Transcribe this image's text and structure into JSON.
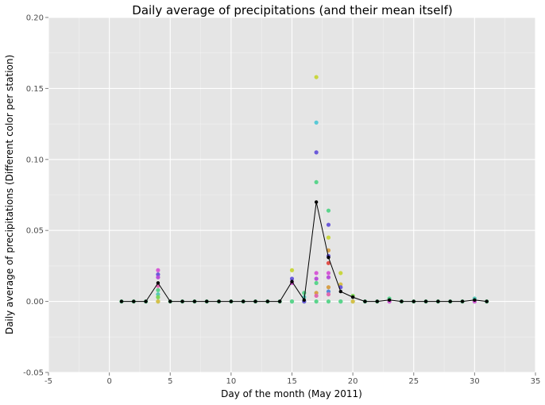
{
  "chart_data": {
    "type": "scatter",
    "title": "Daily average of precipitations (and their mean itself)",
    "xlabel": "Day of the month (May 2011)",
    "ylabel": "Daily average of precipitations (Different color per station)",
    "xlim": [
      -5,
      35
    ],
    "ylim": [
      -0.05,
      0.2
    ],
    "xticks": [
      -5,
      0,
      5,
      10,
      15,
      20,
      25,
      30,
      35
    ],
    "yticks": [
      -0.05,
      0.0,
      0.05,
      0.1,
      0.15,
      0.2
    ],
    "ytick_labels": [
      "-0.05",
      "0.00",
      "0.05",
      "0.10",
      "0.15",
      "0.20"
    ],
    "grid": true,
    "mean_series": {
      "x": [
        1,
        2,
        3,
        4,
        5,
        6,
        7,
        8,
        9,
        10,
        11,
        12,
        13,
        14,
        15,
        16,
        17,
        18,
        19,
        20,
        21,
        22,
        23,
        24,
        25,
        26,
        27,
        28,
        29,
        30,
        31
      ],
      "y": [
        0,
        0,
        0,
        0.013,
        0,
        0,
        0,
        0,
        0,
        0,
        0,
        0,
        0,
        0,
        0.014,
        0.001,
        0.07,
        0.031,
        0.007,
        0.003,
        0,
        0,
        0.001,
        0,
        0,
        0,
        0,
        0,
        0,
        0.001,
        0
      ]
    },
    "station_points": [
      {
        "x": 4,
        "y": 0.022,
        "color": "#d65ad6"
      },
      {
        "x": 4,
        "y": 0.019,
        "color": "#6b5ad9"
      },
      {
        "x": 4,
        "y": 0.017,
        "color": "#b84fd9"
      },
      {
        "x": 4,
        "y": 0.011,
        "color": "#e06ab0"
      },
      {
        "x": 4,
        "y": 0.008,
        "color": "#5bd48c"
      },
      {
        "x": 4,
        "y": 0.005,
        "color": "#58c9b8"
      },
      {
        "x": 4,
        "y": 0.003,
        "color": "#7fd65a"
      },
      {
        "x": 4,
        "y": 0.0,
        "color": "#d6c04a"
      },
      {
        "x": 15,
        "y": 0.022,
        "color": "#c9d640"
      },
      {
        "x": 15,
        "y": 0.016,
        "color": "#6b5ad9"
      },
      {
        "x": 15,
        "y": 0.013,
        "color": "#d65ad6"
      },
      {
        "x": 15,
        "y": 0.0,
        "color": "#5bd48c"
      },
      {
        "x": 16,
        "y": 0.006,
        "color": "#5bd48c"
      },
      {
        "x": 16,
        "y": 0.003,
        "color": "#58c9b8"
      },
      {
        "x": 16,
        "y": 0.0,
        "color": "#6b5ad9"
      },
      {
        "x": 17,
        "y": 0.158,
        "color": "#c9d640"
      },
      {
        "x": 17,
        "y": 0.126,
        "color": "#58c9d6"
      },
      {
        "x": 17,
        "y": 0.105,
        "color": "#6b5ad9"
      },
      {
        "x": 17,
        "y": 0.084,
        "color": "#5bd48c"
      },
      {
        "x": 17,
        "y": 0.02,
        "color": "#d65ad6"
      },
      {
        "x": 17,
        "y": 0.016,
        "color": "#b84fd9"
      },
      {
        "x": 17,
        "y": 0.013,
        "color": "#5bd48c"
      },
      {
        "x": 17,
        "y": 0.006,
        "color": "#d6a04a"
      },
      {
        "x": 17,
        "y": 0.004,
        "color": "#e06ab0"
      },
      {
        "x": 18,
        "y": 0.064,
        "color": "#5bd48c"
      },
      {
        "x": 18,
        "y": 0.054,
        "color": "#6b5ad9"
      },
      {
        "x": 18,
        "y": 0.045,
        "color": "#c9d640"
      },
      {
        "x": 18,
        "y": 0.036,
        "color": "#d6a04a"
      },
      {
        "x": 18,
        "y": 0.032,
        "color": "#6b5ad9"
      },
      {
        "x": 18,
        "y": 0.027,
        "color": "#e0504a"
      },
      {
        "x": 18,
        "y": 0.02,
        "color": "#d65ad6"
      },
      {
        "x": 18,
        "y": 0.017,
        "color": "#b84fd9"
      },
      {
        "x": 18,
        "y": 0.01,
        "color": "#d6a04a"
      },
      {
        "x": 18,
        "y": 0.007,
        "color": "#5a8ad9"
      },
      {
        "x": 18,
        "y": 0.005,
        "color": "#e06ab0"
      },
      {
        "x": 19,
        "y": 0.02,
        "color": "#c9d640"
      },
      {
        "x": 19,
        "y": 0.012,
        "color": "#d6c04a"
      },
      {
        "x": 19,
        "y": 0.01,
        "color": "#6b5ad9"
      },
      {
        "x": 19,
        "y": 0.0,
        "color": "#5bd48c"
      },
      {
        "x": 20,
        "y": 0.004,
        "color": "#7fd65a"
      },
      {
        "x": 20,
        "y": 0.0,
        "color": "#d6c04a"
      },
      {
        "x": 23,
        "y": 0.002,
        "color": "#5bd48c"
      },
      {
        "x": 23,
        "y": 0.0,
        "color": "#d65ad6"
      },
      {
        "x": 30,
        "y": 0.002,
        "color": "#58c9b8"
      },
      {
        "x": 30,
        "y": 0.0,
        "color": "#d65ad6"
      }
    ],
    "base_point_color": "#5bd48c",
    "mean_color": "#000000"
  },
  "colors": {
    "panel": "#e5e5e5",
    "grid_major": "#ffffff",
    "grid_minor": "#f2f2f2",
    "tick": "#7f7f7f"
  }
}
